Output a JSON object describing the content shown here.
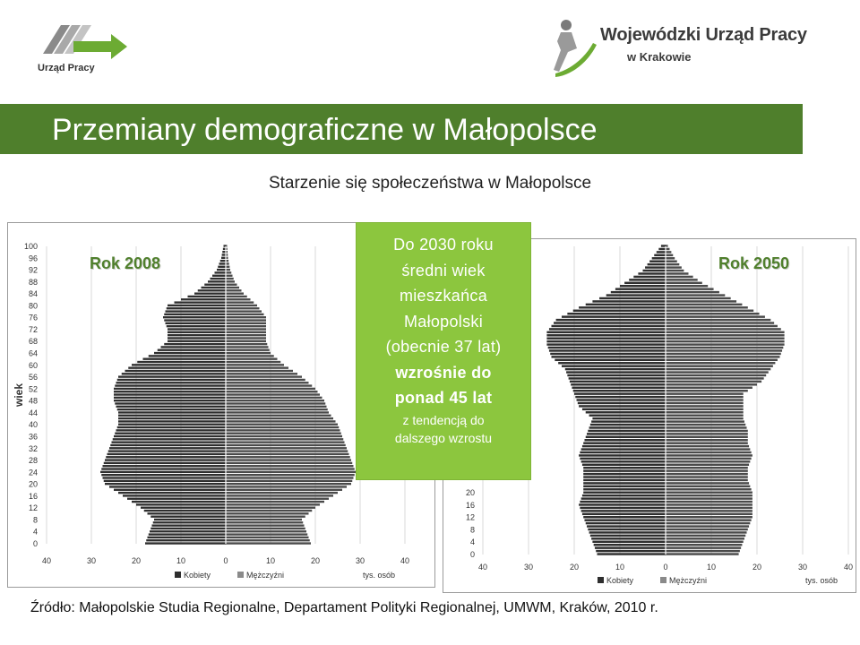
{
  "header": {
    "left_logo_caption": "Urząd Pracy",
    "right_logo_name": "Wojewódzki Urząd Pracy",
    "right_logo_city": "w Krakowie"
  },
  "title": "Przemiany demograficzne w Małopolsce",
  "subtitle": "Starzenie się społeczeństwa w Małopolsce",
  "callout": {
    "lines": [
      "Do 2030 roku",
      "średni wiek",
      "mieszkańca",
      "Małopolski",
      "(obecnie 37 lat)",
      "wzrośnie do",
      "ponad 45 lat",
      "z tendencją do",
      "dalszego wzrostu"
    ]
  },
  "source": "Źródło: Małopolskie Studia Regionalne, Departament Polityki Regionalnej, UMWM, Kraków, 2010 r.",
  "colors": {
    "accent_green": "#4f7f2c",
    "callout_green": "#8cc63e",
    "bar_dark": "#2e2e2e"
  },
  "chart_data": [
    {
      "type": "bar",
      "orientation": "horizontal-pyramid",
      "title": "Rok 2008",
      "ylabel": "wiek",
      "xlabel": "tys. osób",
      "y_ticks": [
        "0",
        "4",
        "8",
        "12",
        "16",
        "20",
        "24",
        "28",
        "32",
        "36",
        "40",
        "44",
        "48",
        "52",
        "56",
        "60",
        "64",
        "68",
        "72",
        "76",
        "80",
        "84",
        "88",
        "92",
        "96",
        "100"
      ],
      "x_ticks": [
        "40",
        "30",
        "20",
        "10",
        "0",
        "10",
        "20",
        "30",
        "40"
      ],
      "xlim": [
        -40,
        40
      ],
      "ylim": [
        0,
        100
      ],
      "legend": [
        "Kobiety",
        "Mężczyźni"
      ],
      "legend_position": "bottom",
      "age_points": [
        0,
        4,
        8,
        12,
        16,
        20,
        24,
        28,
        32,
        36,
        40,
        44,
        48,
        52,
        56,
        60,
        64,
        68,
        72,
        76,
        80,
        84,
        88,
        92,
        96,
        100
      ],
      "series": [
        {
          "name": "Kobiety",
          "values": [
            18,
            17,
            16,
            19,
            23,
            27,
            28,
            27,
            26,
            25,
            24,
            24,
            25,
            25,
            24,
            21,
            16,
            13,
            13,
            14,
            13,
            7,
            4,
            2,
            1,
            0.5
          ]
        },
        {
          "name": "Mężczyźni",
          "values": [
            19,
            18,
            17,
            20,
            24,
            28,
            29,
            28,
            27,
            26,
            25,
            23,
            22,
            20,
            17,
            13,
            10,
            9,
            9,
            9,
            7,
            4,
            2,
            1,
            0.5,
            0.3
          ]
        }
      ]
    },
    {
      "type": "bar",
      "orientation": "horizontal-pyramid",
      "title": "Rok 2050",
      "ylabel": "",
      "xlabel": "tys. osób",
      "y_ticks": [
        "0",
        "4",
        "8",
        "12",
        "16",
        "20"
      ],
      "x_ticks": [
        "40",
        "30",
        "20",
        "10",
        "0",
        "10",
        "20",
        "30",
        "40"
      ],
      "xlim": [
        -40,
        40
      ],
      "ylim": [
        0,
        100
      ],
      "legend": [
        "Kobiety",
        "Mężczyźni"
      ],
      "legend_position": "bottom",
      "age_points": [
        0,
        4,
        8,
        12,
        16,
        20,
        24,
        28,
        32,
        36,
        40,
        44,
        48,
        52,
        56,
        60,
        64,
        68,
        72,
        76,
        80,
        84,
        88,
        92,
        96,
        100
      ],
      "series": [
        {
          "name": "Kobiety",
          "values": [
            15,
            16,
            17,
            18,
            19,
            18,
            18,
            18,
            19,
            18,
            17,
            16,
            19,
            20,
            21,
            22,
            25,
            26,
            26,
            24,
            19,
            13,
            9,
            5,
            3,
            1
          ]
        },
        {
          "name": "Mężczyźni",
          "values": [
            16,
            17,
            18,
            19,
            19,
            19,
            18,
            18,
            19,
            18,
            18,
            17,
            17,
            17,
            21,
            23,
            25,
            26,
            26,
            23,
            18,
            13,
            8,
            4,
            2,
            0.5
          ]
        }
      ]
    }
  ]
}
